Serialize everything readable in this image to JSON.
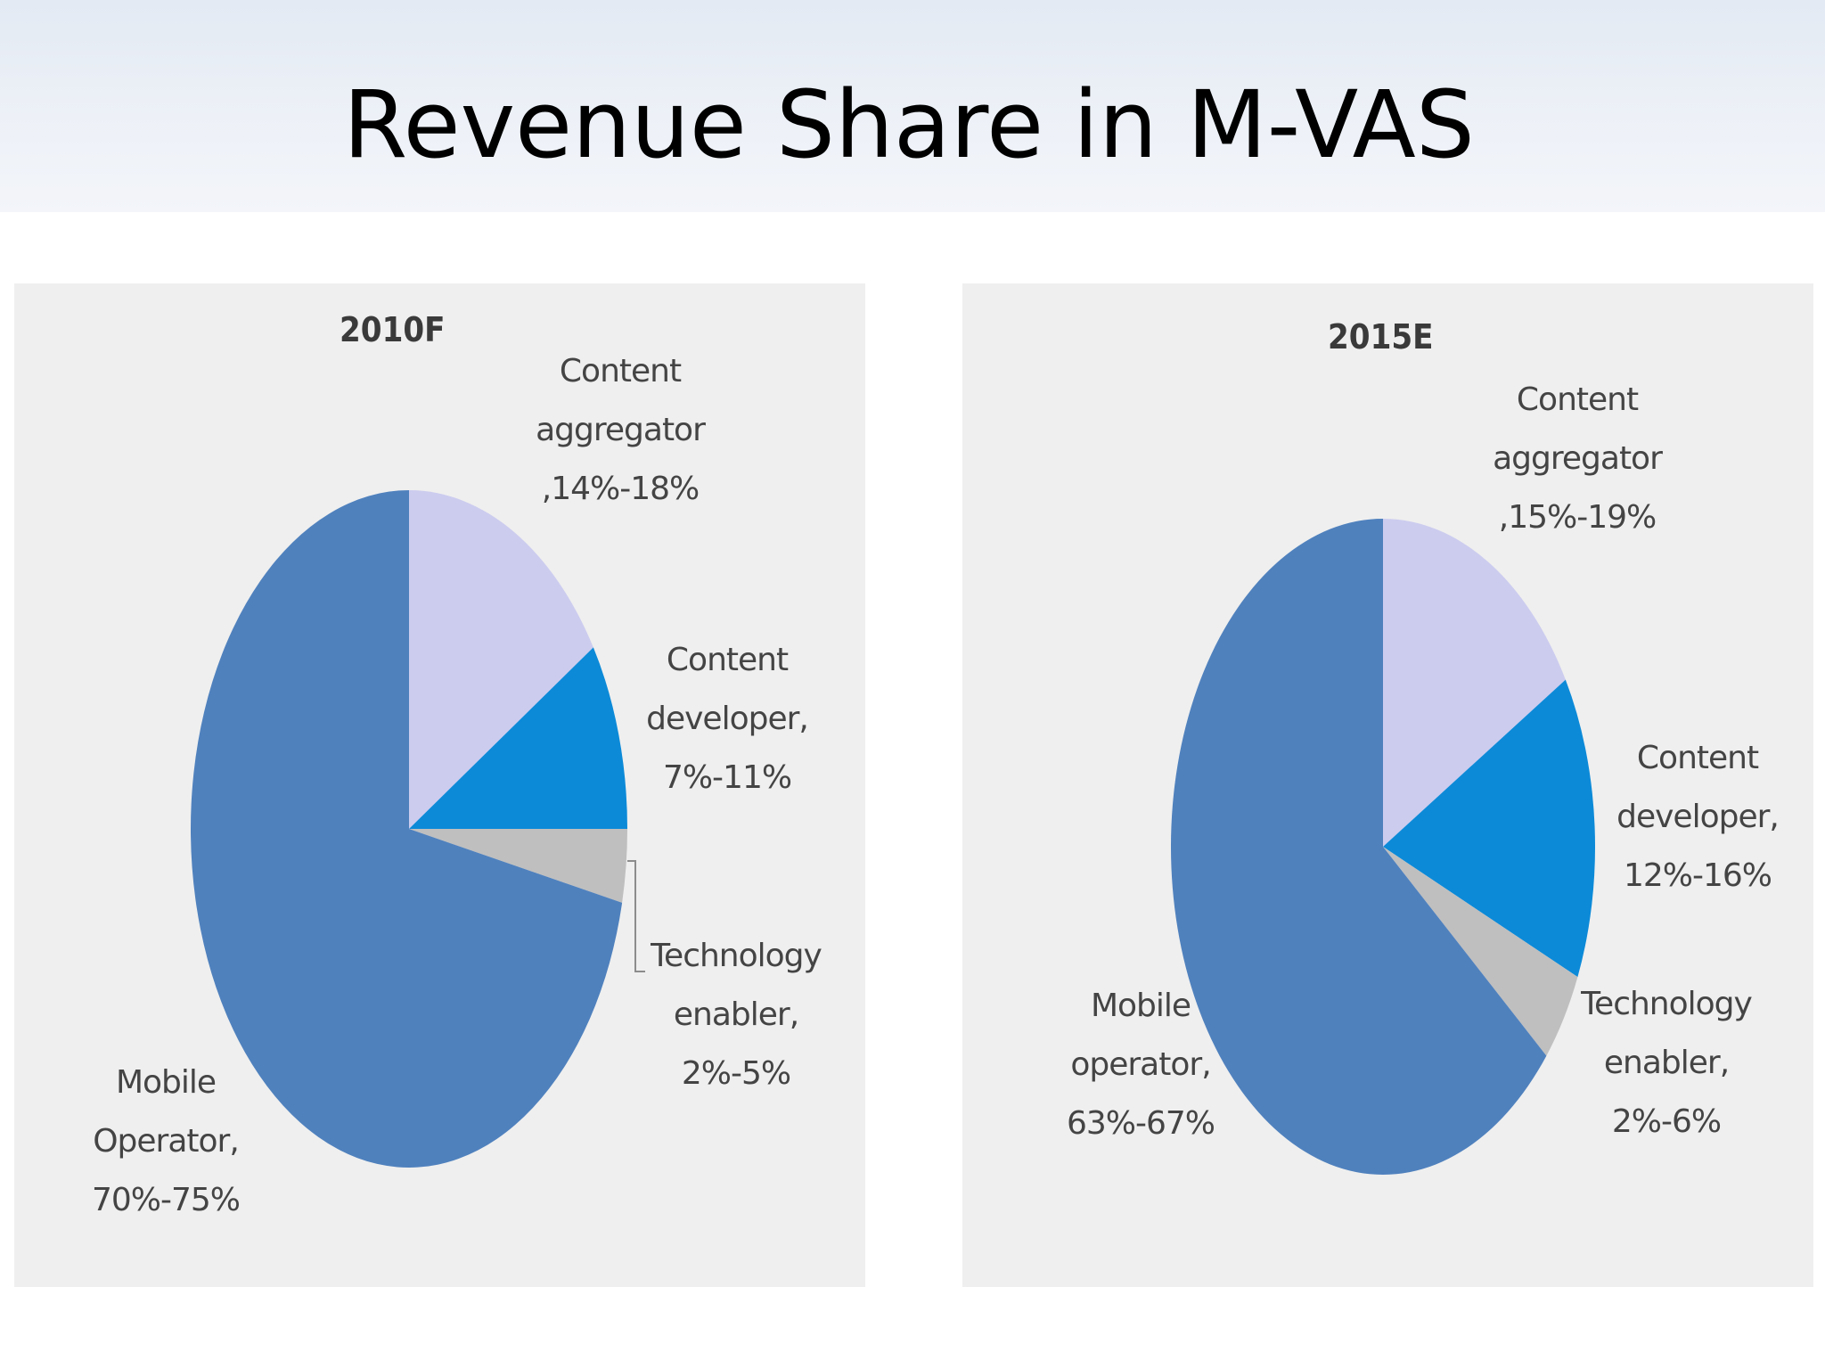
{
  "slide": {
    "title": "Revenue Share in M-VAS"
  },
  "colors": {
    "mobile_operator": "#4f81bd",
    "content_aggregator": "#ccccef",
    "content_developer": "#0c8ad8",
    "technology_enabler": "#bfbfbf"
  },
  "chart_data": [
    {
      "type": "pie",
      "title": "2010F",
      "slices": [
        {
          "label_lines": [
            "Content",
            "aggregator",
            ",14%-18%"
          ],
          "value": 16,
          "color": "#ccccef"
        },
        {
          "label_lines": [
            "Content",
            "developer,",
            "7%-11%"
          ],
          "value": 9,
          "color": "#0c8ad8"
        },
        {
          "label_lines": [
            "Technology",
            "enabler,",
            "2%-5%"
          ],
          "value": 3.5,
          "color": "#bfbfbf"
        },
        {
          "label_lines": [
            "Mobile",
            "Operator,",
            "70%-75%"
          ],
          "value": 71.5,
          "color": "#4f81bd"
        }
      ]
    },
    {
      "type": "pie",
      "title": "2015E",
      "slices": [
        {
          "label_lines": [
            "Content",
            "aggregator",
            ",15%-19%"
          ],
          "value": 16.5,
          "color": "#ccccef"
        },
        {
          "label_lines": [
            "Content",
            "developer,",
            "12%-16%"
          ],
          "value": 15,
          "color": "#0c8ad8"
        },
        {
          "label_lines": [
            "Technology",
            "enabler,",
            "2%-6%"
          ],
          "value": 4.5,
          "color": "#bfbfbf"
        },
        {
          "label_lines": [
            "Mobile",
            "operator,",
            "63%-67%"
          ],
          "value": 64,
          "color": "#4f81bd"
        }
      ]
    }
  ]
}
